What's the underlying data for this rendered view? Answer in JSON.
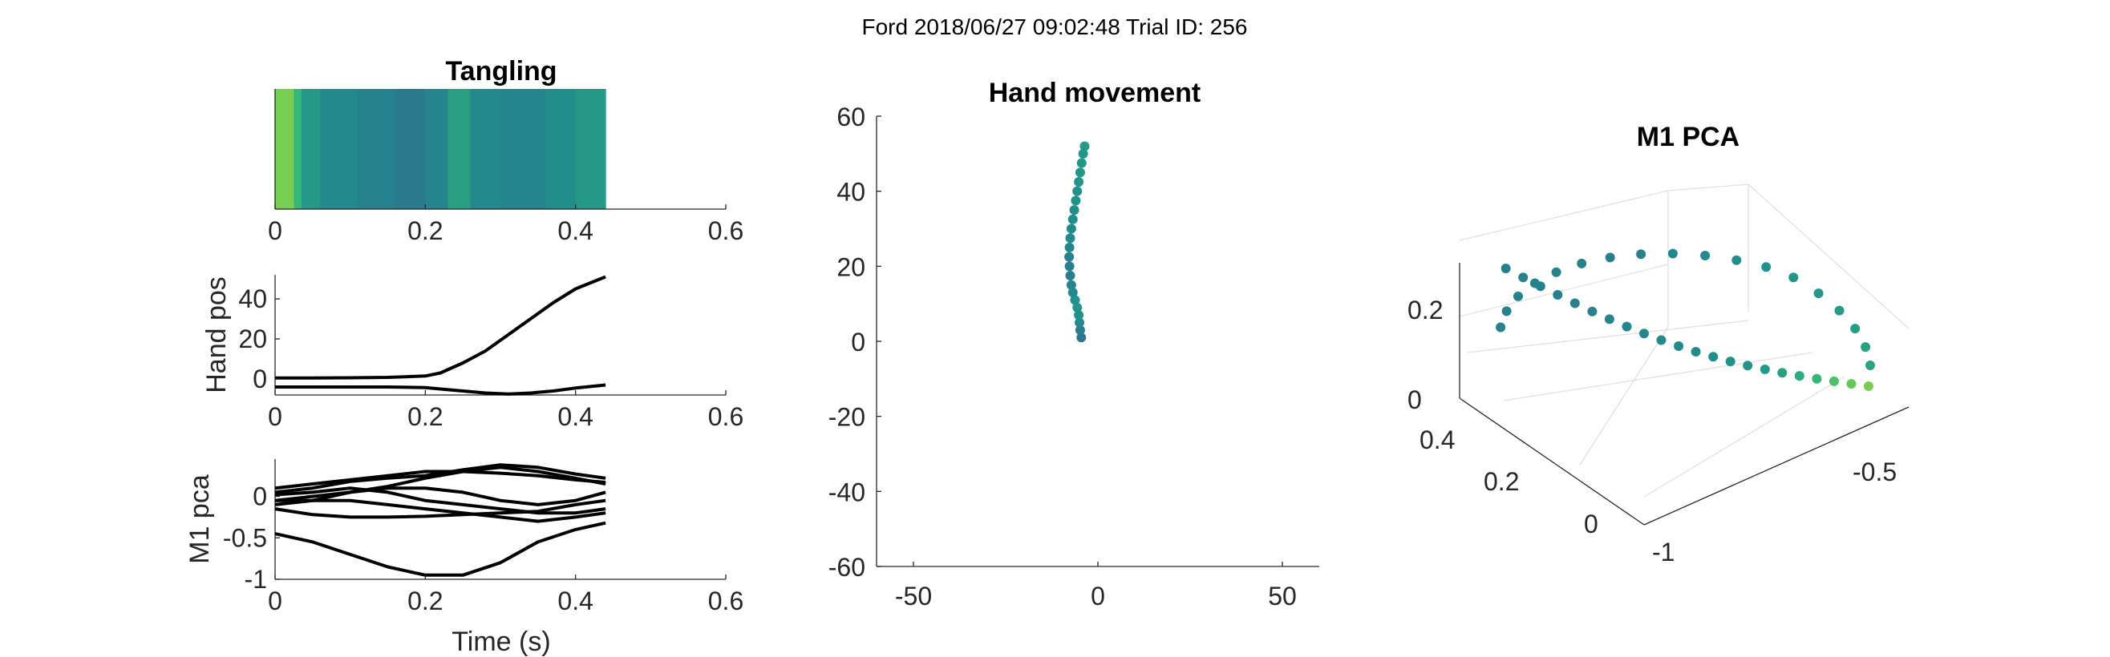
{
  "figure_title": "Ford 2018/06/27 09:02:48 Trial ID: 256",
  "colors": {
    "line": "#000000",
    "axis": "#262626",
    "colormap": [
      "#440154",
      "#31688e",
      "#21918c",
      "#35b779",
      "#90d743"
    ]
  },
  "chart_data": [
    {
      "id": "tangling",
      "type": "heatmap",
      "title": "Tangling",
      "xlabel": "",
      "ylabel": "",
      "xlim": [
        0,
        0.6
      ],
      "xticks": [
        "0",
        "0.2",
        "0.4",
        "0.6"
      ],
      "cells": [
        {
          "t0": 0.0,
          "t1": 0.025,
          "value": 0.93
        },
        {
          "t0": 0.025,
          "t1": 0.035,
          "value": 0.75
        },
        {
          "t0": 0.035,
          "t1": 0.06,
          "value": 0.55
        },
        {
          "t0": 0.06,
          "t1": 0.11,
          "value": 0.45
        },
        {
          "t0": 0.11,
          "t1": 0.16,
          "value": 0.4
        },
        {
          "t0": 0.16,
          "t1": 0.2,
          "value": 0.36
        },
        {
          "t0": 0.2,
          "t1": 0.23,
          "value": 0.42
        },
        {
          "t0": 0.23,
          "t1": 0.26,
          "value": 0.6
        },
        {
          "t0": 0.26,
          "t1": 0.3,
          "value": 0.45
        },
        {
          "t0": 0.3,
          "t1": 0.36,
          "value": 0.42
        },
        {
          "t0": 0.36,
          "t1": 0.4,
          "value": 0.48
        },
        {
          "t0": 0.4,
          "t1": 0.44,
          "value": 0.55
        }
      ]
    },
    {
      "id": "hand-pos",
      "type": "line",
      "title": "",
      "xlabel": "",
      "ylabel": "Hand pos",
      "xlim": [
        0,
        0.6
      ],
      "ylim": [
        -8,
        52
      ],
      "xticks": [
        "0",
        "0.2",
        "0.4",
        "0.6"
      ],
      "yticks": [
        0,
        20,
        40
      ],
      "ytick_labels": [
        "0",
        "20",
        "40"
      ],
      "x": [
        0,
        0.05,
        0.1,
        0.15,
        0.2,
        0.22,
        0.25,
        0.28,
        0.31,
        0.34,
        0.37,
        0.4,
        0.44
      ],
      "series": [
        {
          "values": [
            0.5,
            0.5,
            0.6,
            0.8,
            1.5,
            3,
            8,
            14,
            22,
            30,
            38,
            45,
            51
          ]
        },
        {
          "values": [
            -4,
            -4,
            -4,
            -4,
            -4.3,
            -5,
            -6,
            -7,
            -7.5,
            -7,
            -6,
            -4.5,
            -3
          ]
        }
      ]
    },
    {
      "id": "m1-pca-time",
      "type": "line",
      "title": "",
      "xlabel": "Time (s)",
      "ylabel": "M1 pca",
      "xlim": [
        0,
        0.6
      ],
      "ylim": [
        -1,
        0.45
      ],
      "xticks": [
        "0",
        "0.2",
        "0.4",
        "0.6"
      ],
      "yticks": [
        0,
        -0.5,
        -1
      ],
      "ytick_labels": [
        "0",
        "-0.5",
        "-1"
      ],
      "x": [
        0,
        0.05,
        0.1,
        0.15,
        0.2,
        0.25,
        0.3,
        0.35,
        0.4,
        0.44
      ],
      "series": [
        {
          "values": [
            0.1,
            0.15,
            0.2,
            0.25,
            0.3,
            0.3,
            0.28,
            0.25,
            0.2,
            0.17
          ]
        },
        {
          "values": [
            0.05,
            0.1,
            0.18,
            0.22,
            0.25,
            0.32,
            0.38,
            0.35,
            0.27,
            0.22
          ]
        },
        {
          "values": [
            -0.05,
            0.0,
            0.05,
            0.12,
            0.22,
            0.3,
            0.35,
            0.3,
            0.22,
            0.15
          ]
        },
        {
          "values": [
            -0.1,
            -0.05,
            0.05,
            0.1,
            0.1,
            0.05,
            -0.05,
            -0.1,
            -0.05,
            0.05
          ]
        },
        {
          "values": [
            0.02,
            0.05,
            0.1,
            0.05,
            -0.05,
            -0.1,
            -0.15,
            -0.2,
            -0.2,
            -0.15
          ]
        },
        {
          "values": [
            -0.05,
            -0.05,
            -0.05,
            -0.1,
            -0.15,
            -0.2,
            -0.25,
            -0.3,
            -0.25,
            -0.2
          ]
        },
        {
          "values": [
            -0.15,
            -0.22,
            -0.25,
            -0.25,
            -0.24,
            -0.22,
            -0.2,
            -0.18,
            -0.1,
            -0.05
          ]
        },
        {
          "values": [
            -0.45,
            -0.55,
            -0.7,
            -0.85,
            -0.95,
            -0.95,
            -0.8,
            -0.55,
            -0.4,
            -0.32
          ]
        }
      ]
    },
    {
      "id": "hand-movement",
      "type": "scatter",
      "title": "Hand movement",
      "xlabel": "",
      "ylabel": "",
      "xlim": [
        -60,
        60
      ],
      "ylim": [
        -60,
        60
      ],
      "xticks": [
        -50,
        0,
        50
      ],
      "xtick_labels": [
        "-50",
        "0",
        "50"
      ],
      "yticks": [
        60,
        40,
        20,
        0,
        -20,
        -40,
        -60
      ],
      "ytick_labels": [
        "60",
        "40",
        "20",
        "0",
        "-20",
        "-40",
        "-60"
      ],
      "points": [
        {
          "x": -4.5,
          "y": 1,
          "c": 0.35
        },
        {
          "x": -4.8,
          "y": 3,
          "c": 0.38
        },
        {
          "x": -5.0,
          "y": 5,
          "c": 0.45
        },
        {
          "x": -5.2,
          "y": 7,
          "c": 0.5
        },
        {
          "x": -5.6,
          "y": 9,
          "c": 0.52
        },
        {
          "x": -6.2,
          "y": 11,
          "c": 0.5
        },
        {
          "x": -6.8,
          "y": 13,
          "c": 0.45
        },
        {
          "x": -7.2,
          "y": 15,
          "c": 0.42
        },
        {
          "x": -7.5,
          "y": 17.5,
          "c": 0.4
        },
        {
          "x": -7.7,
          "y": 20,
          "c": 0.38
        },
        {
          "x": -7.8,
          "y": 22.5,
          "c": 0.4
        },
        {
          "x": -7.7,
          "y": 25,
          "c": 0.42
        },
        {
          "x": -7.5,
          "y": 27.5,
          "c": 0.45
        },
        {
          "x": -7.2,
          "y": 30,
          "c": 0.45
        },
        {
          "x": -6.8,
          "y": 32.5,
          "c": 0.47
        },
        {
          "x": -6.4,
          "y": 35,
          "c": 0.48
        },
        {
          "x": -6.0,
          "y": 37.5,
          "c": 0.5
        },
        {
          "x": -5.6,
          "y": 40,
          "c": 0.5
        },
        {
          "x": -5.2,
          "y": 42.5,
          "c": 0.52
        },
        {
          "x": -4.8,
          "y": 45,
          "c": 0.52
        },
        {
          "x": -4.4,
          "y": 47.5,
          "c": 0.53
        },
        {
          "x": -4.0,
          "y": 50,
          "c": 0.53
        },
        {
          "x": -3.6,
          "y": 52,
          "c": 0.55
        }
      ]
    },
    {
      "id": "m1-pca-3d",
      "type": "scatter",
      "title": "M1 PCA",
      "xlabel": "",
      "ylabel": "",
      "x_ticks": [
        "-1",
        "-0.5"
      ],
      "y_ticks": [
        "0",
        "0.2",
        "0.4"
      ],
      "z_ticks": [
        "0",
        "0.2"
      ],
      "trajectory_colors": [
        0.93,
        0.88,
        0.82,
        0.74,
        0.66,
        0.6,
        0.55,
        0.52,
        0.5,
        0.48,
        0.47,
        0.46,
        0.45,
        0.44,
        0.43,
        0.42,
        0.41,
        0.4,
        0.4,
        0.4,
        0.4,
        0.4,
        0.4,
        0.4,
        0.4,
        0.4,
        0.4,
        0.4,
        0.4,
        0.41,
        0.43,
        0.45,
        0.48,
        0.5,
        0.52,
        0.54,
        0.56,
        0.58,
        0.6,
        0.62
      ]
    }
  ]
}
